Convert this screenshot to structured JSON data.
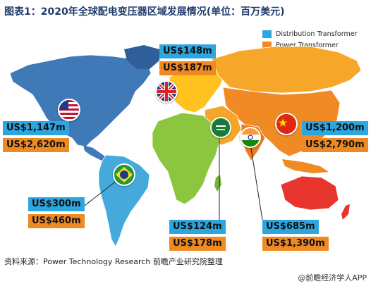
{
  "title": "图表1：2020年全球配电变压器区域发展情况(单位：百万美元)",
  "legend": [
    {
      "label": "Distribution Transformer",
      "color": "#2da6e0"
    },
    {
      "label": "Power Transformer",
      "color": "#ef8a23"
    }
  ],
  "regions": {
    "uk": {
      "distribution": "US$148m",
      "power": "US$187m"
    },
    "usa": {
      "distribution": "US$1,147m",
      "power": "US$2,620m"
    },
    "brazil": {
      "distribution": "US$300m",
      "power": "US$460m"
    },
    "saudi_arabia": {
      "distribution": "US$124m",
      "power": "US$178m"
    },
    "india": {
      "distribution": "US$685m",
      "power": "US$1,390m"
    },
    "china": {
      "distribution": "US$1,200m",
      "power": "US$2,790m"
    }
  },
  "source": "资料来源：Power Technology Research 前瞻产业研究院整理",
  "watermark": "@前瞻经济学人APP",
  "colors": {
    "north_america": "#3f79b8",
    "south_america": "#45a9dc",
    "europe": "#ffc21f",
    "africa": "#8cc63f",
    "asia": "#f08a24",
    "middle_east": "#f4a52a",
    "oceania": "#e8352e"
  }
}
